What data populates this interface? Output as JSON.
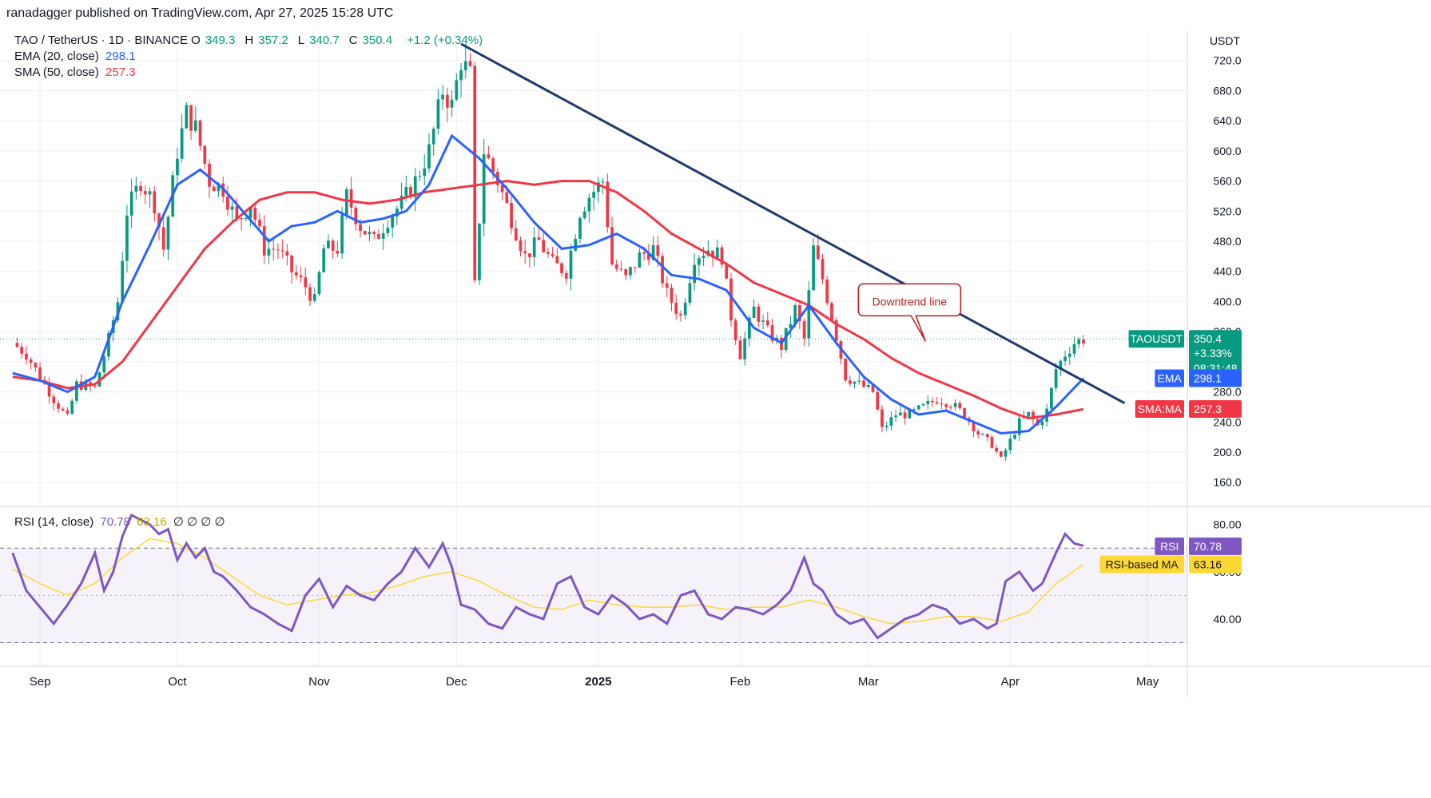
{
  "attribution": "ranadagger published on TradingView.com, Apr 27, 2025 15:28 UTC",
  "colors": {
    "up": "#089981",
    "down": "#f23645",
    "ema": "#2962ff",
    "sma": "#f23645",
    "trendline": "#1e3a6e",
    "rsi": "#7e57c2",
    "rsi_ma": "#fdd835",
    "grid": "#eef0f3",
    "axis_text": "#131722"
  },
  "header": {
    "symbol": "TAO / TetherUS · 1D · BINANCE",
    "ohlc": [
      {
        "k": "O",
        "v": "349.3"
      },
      {
        "k": "H",
        "v": "357.2"
      },
      {
        "k": "L",
        "v": "340.7"
      },
      {
        "k": "C",
        "v": "350.4"
      },
      {
        "k": "",
        "v": "+1.2 (+0.34%)"
      }
    ],
    "ema_label": "EMA (20, close)",
    "ema_value": "298.1",
    "sma_label": "SMA (50, close)",
    "sma_value": "257.3",
    "rsi_label": "RSI (14, close)",
    "rsi_value": "70.78",
    "rsi_ma_value": "63.16",
    "rsi_extra": "∅ ∅ ∅ ∅"
  },
  "currency": "USDT",
  "annotation": "Downtrend line",
  "badges": {
    "ticker": "TAOUSDT",
    "price": "350.4",
    "change": "+3.33%",
    "countdown": "08:31:48",
    "ema_tag": "EMA",
    "ema_val": "298.1",
    "sma_tag": "SMA:MA",
    "sma_val": "257.3",
    "rsi_tag": "RSI",
    "rsi_val": "70.78",
    "rsima_tag": "RSI-based MA",
    "rsima_val": "63.16"
  },
  "chart_data": [
    {
      "type": "candlestick",
      "title": "TAO / TetherUS · 1D · BINANCE",
      "y_ticks": [
        "160.0",
        "200.0",
        "240.0",
        "280.0",
        "320.0",
        "360.0",
        "400.0",
        "440.0",
        "480.0",
        "520.0",
        "560.0",
        "600.0",
        "640.0",
        "680.0",
        "720.0"
      ],
      "y_range": [
        130,
        760
      ],
      "x_ticks": [
        {
          "label": "Sep",
          "day": 0
        },
        {
          "label": "Oct",
          "day": 30
        },
        {
          "label": "Nov",
          "day": 61
        },
        {
          "label": "Dec",
          "day": 91
        },
        {
          "label": "2025",
          "day": 122
        },
        {
          "label": "Feb",
          "day": 153
        },
        {
          "label": "Mar",
          "day": 181
        },
        {
          "label": "Apr",
          "day": 212
        },
        {
          "label": "May",
          "day": 242
        }
      ],
      "price_anchors": [
        [
          -6,
          345
        ],
        [
          -3,
          330
        ],
        [
          0,
          300
        ],
        [
          3,
          270
        ],
        [
          6,
          245
        ],
        [
          8,
          290
        ],
        [
          12,
          285
        ],
        [
          15,
          350
        ],
        [
          17,
          400
        ],
        [
          19,
          520
        ],
        [
          22,
          560
        ],
        [
          25,
          530
        ],
        [
          27,
          470
        ],
        [
          30,
          600
        ],
        [
          32,
          650
        ],
        [
          34,
          630
        ],
        [
          37,
          560
        ],
        [
          40,
          550
        ],
        [
          43,
          505
        ],
        [
          46,
          530
        ],
        [
          49,
          470
        ],
        [
          52,
          470
        ],
        [
          55,
          440
        ],
        [
          58,
          420
        ],
        [
          60,
          400
        ],
        [
          62,
          470
        ],
        [
          65,
          470
        ],
        [
          67,
          540
        ],
        [
          70,
          500
        ],
        [
          73,
          480
        ],
        [
          76,
          510
        ],
        [
          79,
          530
        ],
        [
          82,
          560
        ],
        [
          85,
          600
        ],
        [
          88,
          680
        ],
        [
          90,
          660
        ],
        [
          92,
          720
        ],
        [
          94,
          700
        ],
        [
          95,
          420
        ],
        [
          97,
          600
        ],
        [
          100,
          560
        ],
        [
          103,
          510
        ],
        [
          106,
          460
        ],
        [
          109,
          480
        ],
        [
          112,
          450
        ],
        [
          115,
          440
        ],
        [
          118,
          520
        ],
        [
          120,
          540
        ],
        [
          123,
          560
        ],
        [
          125,
          450
        ],
        [
          128,
          430
        ],
        [
          131,
          460
        ],
        [
          134,
          470
        ],
        [
          137,
          410
        ],
        [
          140,
          380
        ],
        [
          143,
          460
        ],
        [
          146,
          470
        ],
        [
          149,
          460
        ],
        [
          151,
          380
        ],
        [
          153,
          330
        ],
        [
          156,
          390
        ],
        [
          159,
          360
        ],
        [
          162,
          340
        ],
        [
          165,
          390
        ],
        [
          167,
          350
        ],
        [
          169,
          470
        ],
        [
          171,
          430
        ],
        [
          173,
          380
        ],
        [
          176,
          300
        ],
        [
          179,
          290
        ],
        [
          182,
          280
        ],
        [
          184,
          230
        ],
        [
          187,
          250
        ],
        [
          190,
          250
        ],
        [
          193,
          260
        ],
        [
          196,
          270
        ],
        [
          199,
          265
        ],
        [
          202,
          250
        ],
        [
          205,
          225
        ],
        [
          208,
          210
        ],
        [
          210,
          190
        ],
        [
          212,
          215
        ],
        [
          214,
          240
        ],
        [
          216,
          250
        ],
        [
          218,
          235
        ],
        [
          220,
          255
        ],
        [
          222,
          310
        ],
        [
          224,
          330
        ],
        [
          226,
          345
        ],
        [
          228,
          350
        ]
      ],
      "candle_days_range": [
        -6,
        228
      ],
      "ema20_anchors": [
        [
          -6,
          305
        ],
        [
          0,
          295
        ],
        [
          6,
          280
        ],
        [
          12,
          300
        ],
        [
          18,
          400
        ],
        [
          24,
          475
        ],
        [
          30,
          555
        ],
        [
          35,
          575
        ],
        [
          40,
          550
        ],
        [
          45,
          515
        ],
        [
          50,
          480
        ],
        [
          55,
          500
        ],
        [
          60,
          505
        ],
        [
          65,
          520
        ],
        [
          70,
          505
        ],
        [
          75,
          510
        ],
        [
          80,
          520
        ],
        [
          85,
          555
        ],
        [
          90,
          620
        ],
        [
          96,
          590
        ],
        [
          102,
          550
        ],
        [
          108,
          505
        ],
        [
          114,
          470
        ],
        [
          120,
          475
        ],
        [
          126,
          490
        ],
        [
          132,
          470
        ],
        [
          138,
          435
        ],
        [
          144,
          430
        ],
        [
          150,
          415
        ],
        [
          156,
          365
        ],
        [
          162,
          345
        ],
        [
          168,
          395
        ],
        [
          174,
          345
        ],
        [
          180,
          300
        ],
        [
          186,
          270
        ],
        [
          192,
          250
        ],
        [
          198,
          255
        ],
        [
          204,
          240
        ],
        [
          210,
          225
        ],
        [
          216,
          228
        ],
        [
          222,
          260
        ],
        [
          228,
          298
        ]
      ],
      "sma50_anchors": [
        [
          -6,
          300
        ],
        [
          0,
          295
        ],
        [
          6,
          285
        ],
        [
          12,
          290
        ],
        [
          18,
          320
        ],
        [
          24,
          370
        ],
        [
          30,
          420
        ],
        [
          36,
          470
        ],
        [
          42,
          505
        ],
        [
          48,
          535
        ],
        [
          54,
          545
        ],
        [
          60,
          545
        ],
        [
          66,
          535
        ],
        [
          72,
          530
        ],
        [
          78,
          535
        ],
        [
          84,
          545
        ],
        [
          90,
          550
        ],
        [
          96,
          555
        ],
        [
          102,
          560
        ],
        [
          108,
          555
        ],
        [
          114,
          560
        ],
        [
          120,
          560
        ],
        [
          126,
          545
        ],
        [
          132,
          520
        ],
        [
          138,
          490
        ],
        [
          144,
          470
        ],
        [
          150,
          450
        ],
        [
          156,
          425
        ],
        [
          162,
          410
        ],
        [
          168,
          395
        ],
        [
          174,
          370
        ],
        [
          180,
          350
        ],
        [
          186,
          325
        ],
        [
          192,
          305
        ],
        [
          198,
          290
        ],
        [
          204,
          275
        ],
        [
          210,
          258
        ],
        [
          216,
          245
        ],
        [
          222,
          250
        ],
        [
          228,
          257
        ]
      ],
      "trendline": {
        "from": [
          92,
          742
        ],
        "to": [
          237,
          265
        ]
      },
      "last_price": 350.4
    },
    {
      "type": "line",
      "title": "RSI (14, close)",
      "y_ticks": [
        "40.00",
        "60.00",
        "80.00"
      ],
      "y_range": [
        20,
        87
      ],
      "bands": {
        "upper": 70,
        "lower": 30,
        "mid": 50
      },
      "rsi_anchors": [
        [
          -6,
          68
        ],
        [
          -3,
          52
        ],
        [
          0,
          45
        ],
        [
          3,
          38
        ],
        [
          6,
          46
        ],
        [
          9,
          55
        ],
        [
          12,
          68
        ],
        [
          14,
          52
        ],
        [
          16,
          60
        ],
        [
          18,
          75
        ],
        [
          20,
          84
        ],
        [
          22,
          82
        ],
        [
          24,
          80
        ],
        [
          26,
          76
        ],
        [
          28,
          78
        ],
        [
          30,
          65
        ],
        [
          32,
          72
        ],
        [
          34,
          66
        ],
        [
          36,
          70
        ],
        [
          38,
          60
        ],
        [
          40,
          58
        ],
        [
          43,
          52
        ],
        [
          46,
          45
        ],
        [
          49,
          42
        ],
        [
          52,
          38
        ],
        [
          55,
          35
        ],
        [
          58,
          50
        ],
        [
          61,
          57
        ],
        [
          64,
          45
        ],
        [
          67,
          54
        ],
        [
          70,
          50
        ],
        [
          73,
          48
        ],
        [
          76,
          55
        ],
        [
          79,
          60
        ],
        [
          82,
          70
        ],
        [
          85,
          62
        ],
        [
          88,
          72
        ],
        [
          90,
          62
        ],
        [
          92,
          46
        ],
        [
          95,
          44
        ],
        [
          98,
          38
        ],
        [
          101,
          36
        ],
        [
          104,
          45
        ],
        [
          107,
          42
        ],
        [
          110,
          40
        ],
        [
          113,
          55
        ],
        [
          116,
          58
        ],
        [
          119,
          45
        ],
        [
          122,
          42
        ],
        [
          125,
          50
        ],
        [
          128,
          46
        ],
        [
          131,
          40
        ],
        [
          134,
          42
        ],
        [
          137,
          38
        ],
        [
          140,
          50
        ],
        [
          143,
          52
        ],
        [
          146,
          42
        ],
        [
          149,
          40
        ],
        [
          152,
          45
        ],
        [
          155,
          44
        ],
        [
          158,
          42
        ],
        [
          161,
          46
        ],
        [
          164,
          52
        ],
        [
          167,
          66
        ],
        [
          169,
          55
        ],
        [
          171,
          52
        ],
        [
          174,
          42
        ],
        [
          177,
          38
        ],
        [
          180,
          40
        ],
        [
          183,
          32
        ],
        [
          186,
          36
        ],
        [
          189,
          40
        ],
        [
          192,
          42
        ],
        [
          195,
          46
        ],
        [
          198,
          44
        ],
        [
          201,
          38
        ],
        [
          204,
          40
        ],
        [
          207,
          36
        ],
        [
          209,
          38
        ],
        [
          211,
          56
        ],
        [
          214,
          60
        ],
        [
          217,
          52
        ],
        [
          219,
          55
        ],
        [
          222,
          68
        ],
        [
          224,
          76
        ],
        [
          226,
          72
        ],
        [
          228,
          71
        ]
      ],
      "rsi_ma_anchors": [
        [
          -6,
          61
        ],
        [
          0,
          55
        ],
        [
          6,
          50
        ],
        [
          12,
          55
        ],
        [
          18,
          66
        ],
        [
          24,
          74
        ],
        [
          30,
          72
        ],
        [
          36,
          66
        ],
        [
          42,
          58
        ],
        [
          48,
          50
        ],
        [
          54,
          46
        ],
        [
          60,
          48
        ],
        [
          66,
          50
        ],
        [
          72,
          51
        ],
        [
          78,
          54
        ],
        [
          84,
          58
        ],
        [
          90,
          60
        ],
        [
          96,
          56
        ],
        [
          102,
          50
        ],
        [
          108,
          45
        ],
        [
          114,
          44
        ],
        [
          120,
          48
        ],
        [
          126,
          46
        ],
        [
          132,
          45
        ],
        [
          138,
          45
        ],
        [
          144,
          46
        ],
        [
          150,
          44
        ],
        [
          156,
          45
        ],
        [
          162,
          45
        ],
        [
          168,
          48
        ],
        [
          174,
          45
        ],
        [
          180,
          41
        ],
        [
          186,
          38
        ],
        [
          192,
          39
        ],
        [
          198,
          41
        ],
        [
          204,
          41
        ],
        [
          210,
          39
        ],
        [
          216,
          43
        ],
        [
          222,
          55
        ],
        [
          228,
          63
        ]
      ]
    }
  ]
}
